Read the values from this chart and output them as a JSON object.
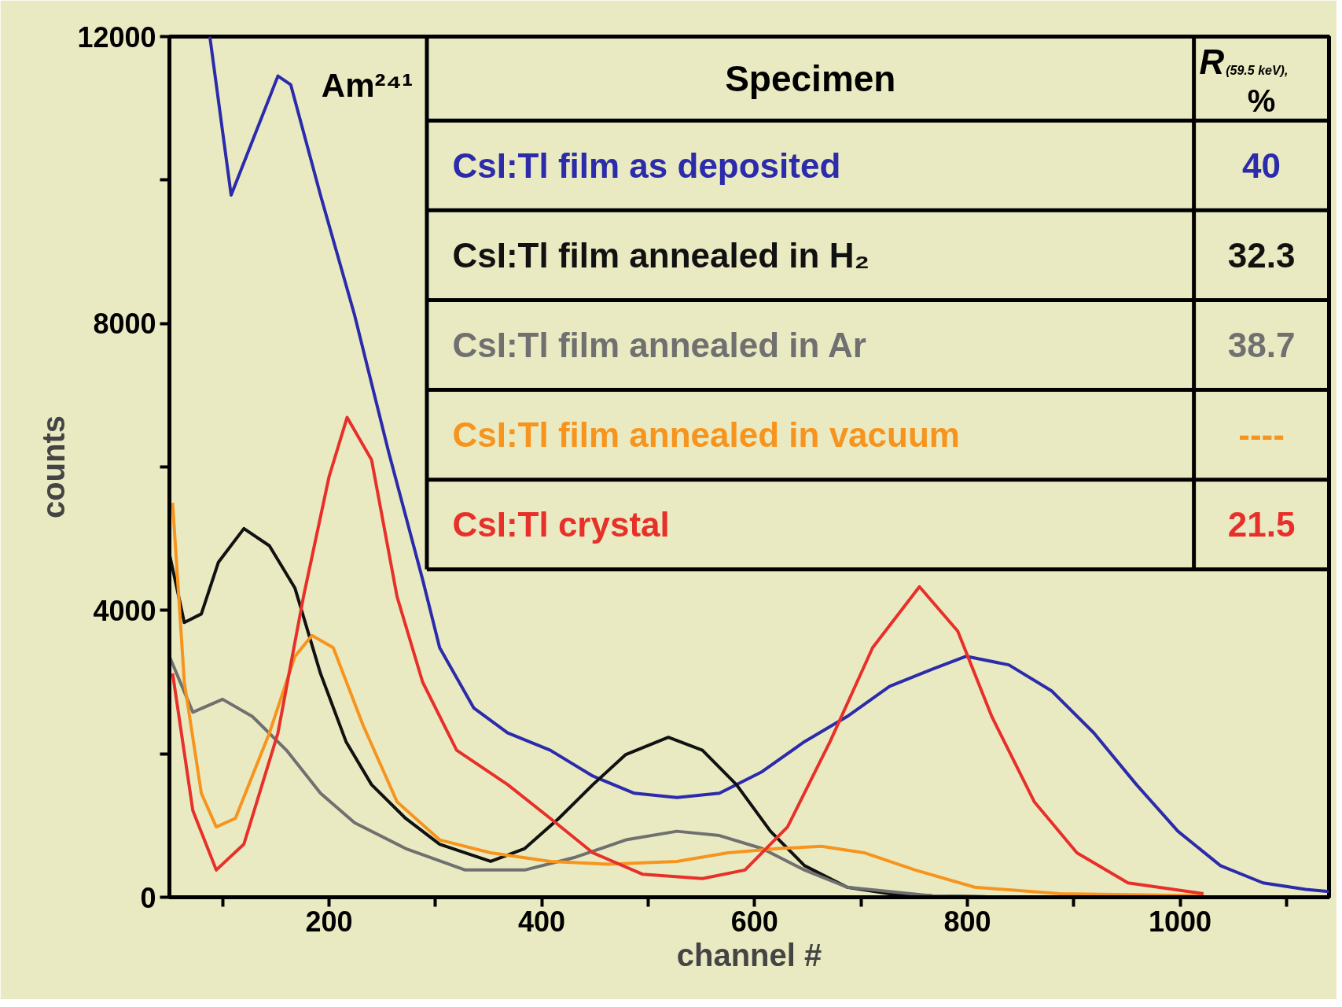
{
  "chart_data": {
    "type": "line",
    "xlabel": "channel #",
    "ylabel": "counts",
    "xlim": [
      50,
      1140
    ],
    "ylim": [
      0,
      12000
    ],
    "xticks": [
      {
        "value": 100,
        "label": null
      },
      200,
      {
        "value": 300,
        "label": null
      },
      400,
      {
        "value": 500,
        "label": null
      },
      600,
      {
        "value": 700,
        "label": null
      },
      800,
      {
        "value": 900,
        "label": null
      },
      1000,
      {
        "value": 1100,
        "label": null
      }
    ],
    "yticks": [
      0,
      {
        "value": 2000,
        "label": null
      },
      4000,
      {
        "value": 6000,
        "label": null
      },
      8000,
      {
        "value": 10000,
        "label": null
      },
      12000
    ],
    "grid": false,
    "legend": "top right",
    "marker": "none",
    "line_style": "solid",
    "legend_title": "Specimen",
    "annotations": [
      "Am²⁴¹",
      "R$_{(59.5 keV)}$, %",
      "40",
      "32.3",
      "38.7",
      "----",
      "21.5"
    ],
    "series": [
      {
        "name": "CsI:Tl film as deposited",
        "color": "#2b2bab",
        "x": [
          88,
          108,
          152,
          164,
          192,
          224,
          256,
          288,
          304,
          336,
          368,
          408,
          448,
          487,
          527,
          567,
          607,
          647,
          687,
          727,
          767,
          799,
          839,
          879,
          919,
          959,
          998,
          1038,
          1078,
          1118,
          1140
        ],
        "values": [
          12000,
          9790,
          11450,
          11330,
          9790,
          8120,
          6210,
          4430,
          3480,
          2640,
          2290,
          2050,
          1690,
          1450,
          1390,
          1450,
          1750,
          2170,
          2520,
          2940,
          3180,
          3360,
          3240,
          2880,
          2290,
          1570,
          920,
          440,
          200,
          110,
          80
        ]
      },
      {
        "name": "CsI:Tl film annealed in H₂",
        "color": "#111111",
        "x": [
          50,
          64,
          80,
          96,
          120,
          144,
          168,
          192,
          216,
          240,
          272,
          304,
          352,
          384,
          416,
          448,
          479,
          519,
          551,
          583,
          615,
          647,
          687,
          727,
          767,
          846
        ],
        "values": [
          4790,
          3830,
          3950,
          4670,
          5140,
          4900,
          4310,
          3120,
          2170,
          1570,
          1100,
          740,
          500,
          680,
          1100,
          1570,
          1990,
          2230,
          2050,
          1570,
          920,
          440,
          140,
          50,
          20,
          0
        ]
      },
      {
        "name": "CsI:Tl film annealed in Ar",
        "color": "#707070",
        "x": [
          50,
          72,
          100,
          128,
          160,
          192,
          224,
          272,
          328,
          384,
          432,
          479,
          527,
          567,
          607,
          647,
          687,
          767,
          846
        ],
        "values": [
          3360,
          2580,
          2760,
          2520,
          2050,
          1450,
          1040,
          680,
          380,
          380,
          560,
          800,
          920,
          860,
          680,
          380,
          140,
          20,
          0
        ]
      },
      {
        "name": "CsI:Tl film annealed in vacuum",
        "color": "#f7941d",
        "x": [
          53,
          64,
          80,
          94,
          112,
          144,
          168,
          184,
          204,
          232,
          264,
          304,
          352,
          408,
          463,
          527,
          575,
          623,
          663,
          703,
          751,
          807,
          887,
          1022
        ],
        "values": [
          5500,
          3000,
          1450,
          980,
          1100,
          2290,
          3360,
          3650,
          3480,
          2400,
          1330,
          800,
          620,
          500,
          460,
          500,
          620,
          680,
          710,
          620,
          380,
          140,
          50,
          20
        ]
      },
      {
        "name": "CsI:Tl crystal",
        "color": "#e8302a",
        "x": [
          53,
          72,
          94,
          120,
          152,
          176,
          200,
          217,
          240,
          264,
          288,
          320,
          368,
          408,
          448,
          495,
          551,
          591,
          631,
          671,
          711,
          755,
          791,
          823,
          863,
          903,
          951,
          1022
        ],
        "values": [
          3120,
          1210,
          380,
          740,
          2290,
          4190,
          5860,
          6690,
          6100,
          4190,
          3000,
          2050,
          1570,
          1100,
          620,
          320,
          260,
          380,
          980,
          2170,
          3480,
          4330,
          3710,
          2520,
          1330,
          620,
          200,
          50
        ]
      }
    ]
  }
}
